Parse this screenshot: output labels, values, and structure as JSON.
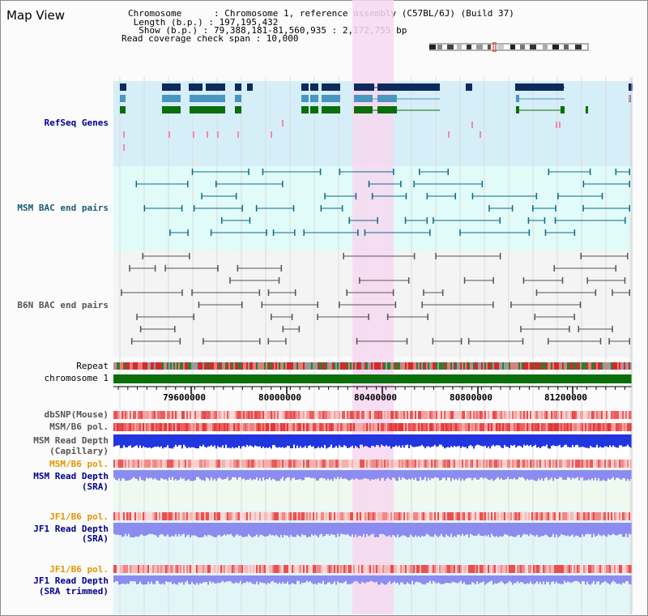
{
  "title": "Map View",
  "info": {
    "chromosome": "Chromosome      : Chromosome 1, reference assembly (C57BL/6J) (Build 37)",
    "length": " Length (b.p.) : 197,195,432",
    "show": "  Show (b.p.) : 79,388,181-81,560,935 : 2,172,755 bp",
    "coverage": "Read coverage check span : 10,000"
  },
  "tracks": {
    "refseq": "RefSeq Genes",
    "msm_bac": "MSM BAC end pairs",
    "b6n_bac": "B6N BAC end pairs",
    "repeat": "Repeat",
    "chromosome": "chromosome 1",
    "dbsnp": "dbSNP(Mouse)",
    "msm_b6_pol_1": "MSM/B6 pol.",
    "msm_depth_cap_1": "MSM Read Depth",
    "msm_depth_cap_2": "(Capillary)",
    "msm_b6_pol_2": "MSM/B6 pol.",
    "msm_depth_sra_1": "MSM Read Depth",
    "msm_depth_sra_2": "(SRA)",
    "jf1_b6_pol_1": "JF1/B6 pol.",
    "jf1_depth_sra_1": "JF1 Read Depth",
    "jf1_depth_sra_2": "(SRA)",
    "jf1_b6_pol_2": "JF1/B6 pol.",
    "jf1_depth_trim_1": "JF1 Read Depth",
    "jf1_depth_trim_2": "(SRA trimmed)"
  },
  "ruler": {
    "ticks": [
      "79600000",
      "80000000",
      "80400000",
      "80800000",
      "81200000"
    ]
  },
  "colors": {
    "highlight": "#f7d8f0",
    "refseq_bg": "#d6eef8",
    "bac_bg": "#e0fbf8",
    "b6n_bg": "#f4f4f4",
    "gene_dark": "#0d2a5c",
    "gene_mid": "#4797bf",
    "gene_green": "#0a6e0a",
    "chromosome_bar": "#0a6e0a",
    "depth_blue": "#2236e0",
    "depth_light": "#8c8cf0",
    "pol_red": "#e84a4a"
  }
}
